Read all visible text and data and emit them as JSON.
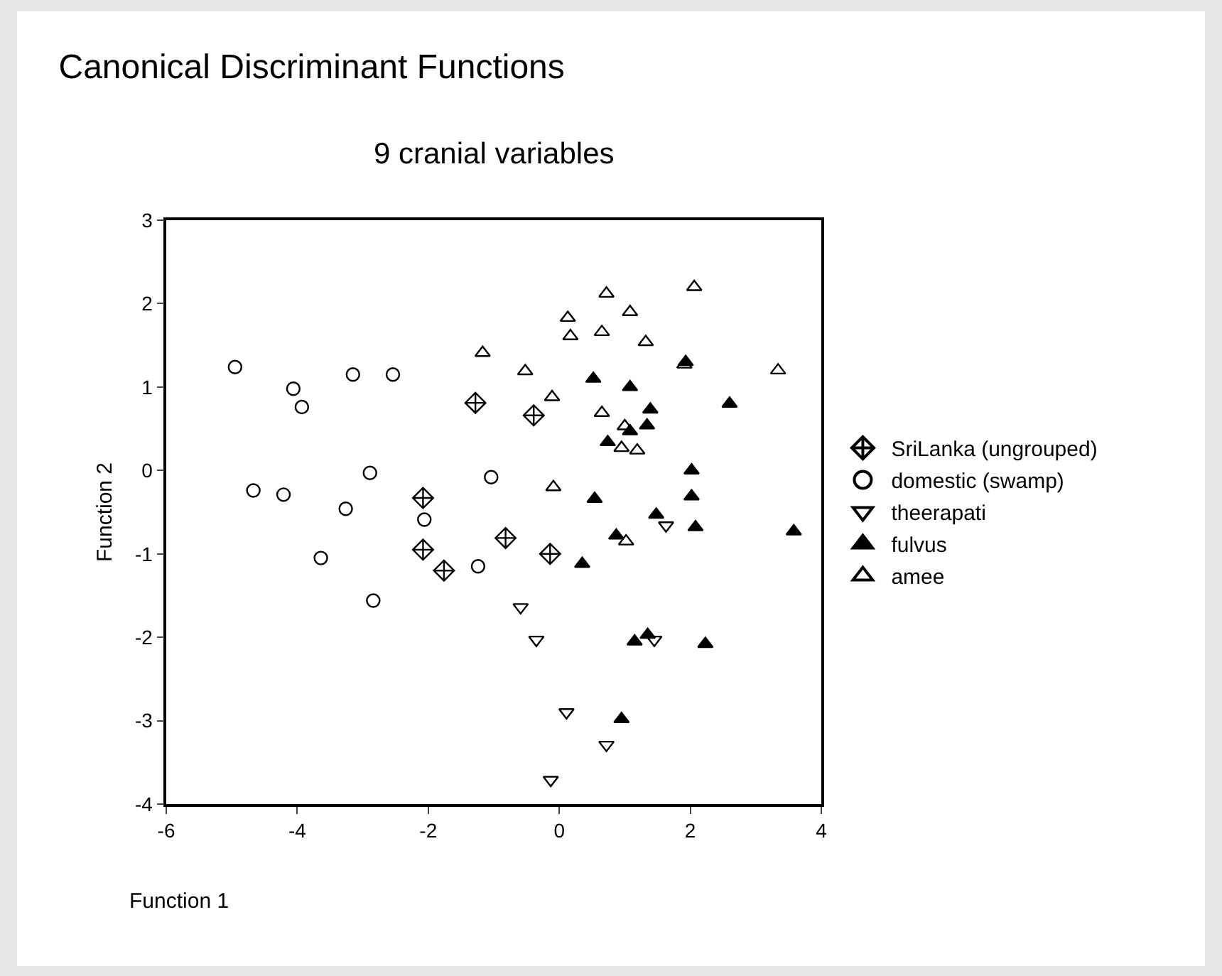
{
  "chart_data": {
    "type": "scatter",
    "title": "Canonical Discriminant Functions",
    "subtitle": "9 cranial variables",
    "xlabel": "Function 1",
    "ylabel": "Function 2",
    "xlim": [
      -6,
      4
    ],
    "xticks": [
      -6,
      -4,
      -2,
      0,
      2,
      4
    ],
    "ylim": [
      -4,
      3
    ],
    "yticks": [
      -4,
      -3,
      -2,
      -1,
      0,
      1,
      2,
      3
    ],
    "grid": false,
    "legend": "right",
    "series": [
      {
        "name": "SriLanka (ungrouped)",
        "color": "#000000",
        "marker": "diamond-cross",
        "x": [
          -1.28,
          -0.39,
          -2.08,
          -2.08,
          -1.76,
          -0.82,
          -0.14
        ],
        "values": [
          0.81,
          0.66,
          -0.33,
          -0.95,
          -1.2,
          -0.81,
          -1.0
        ]
      },
      {
        "name": "domestic (swamp)",
        "color": "#000000",
        "marker": "circle",
        "x": [
          -4.95,
          -4.06,
          -3.93,
          -3.15,
          -2.54,
          -4.67,
          -4.21,
          -3.26,
          -2.89,
          -3.64,
          -2.84,
          -2.06,
          -1.24,
          -1.04
        ],
        "values": [
          1.24,
          0.98,
          0.76,
          1.15,
          1.15,
          -0.24,
          -0.29,
          -0.46,
          -0.03,
          -1.05,
          -1.56,
          -0.59,
          -1.15,
          -0.08
        ]
      },
      {
        "name": "theerapati",
        "color": "#000000",
        "marker": "triangle-down",
        "x": [
          1.63,
          -0.59,
          -0.35,
          1.45,
          0.11,
          0.72,
          -0.13
        ],
        "values": [
          -0.66,
          -1.64,
          -2.03,
          -2.03,
          -2.9,
          -3.29,
          -3.71
        ]
      },
      {
        "name": "fulvus",
        "color": "#000000",
        "marker": "triangle-filled",
        "x": [
          0.52,
          1.08,
          2.6,
          1.39,
          1.34,
          1.08,
          0.74,
          1.93,
          2.02,
          2.02,
          0.54,
          1.48,
          2.08,
          3.58,
          0.87,
          0.35,
          1.15,
          1.35,
          2.23,
          0.95
        ],
        "values": [
          1.1,
          1.0,
          0.8,
          0.73,
          0.54,
          0.47,
          0.34,
          1.3,
          0.0,
          -0.31,
          -0.34,
          -0.53,
          -0.68,
          -0.73,
          -0.78,
          -1.12,
          -2.05,
          -1.97,
          -2.08,
          -2.98
        ]
      },
      {
        "name": "amee",
        "color": "#000000",
        "marker": "triangle",
        "x": [
          -1.17,
          0.72,
          2.06,
          1.08,
          0.13,
          0.17,
          0.65,
          1.32,
          -0.52,
          -0.11,
          1.91,
          3.34,
          0.65,
          1.0,
          0.95,
          1.19,
          -0.09,
          1.02
        ],
        "values": [
          1.41,
          2.12,
          2.2,
          1.9,
          1.83,
          1.61,
          1.66,
          1.54,
          1.19,
          0.88,
          1.27,
          1.2,
          0.69,
          0.53,
          0.27,
          0.24,
          -0.2,
          -0.85
        ]
      }
    ]
  }
}
